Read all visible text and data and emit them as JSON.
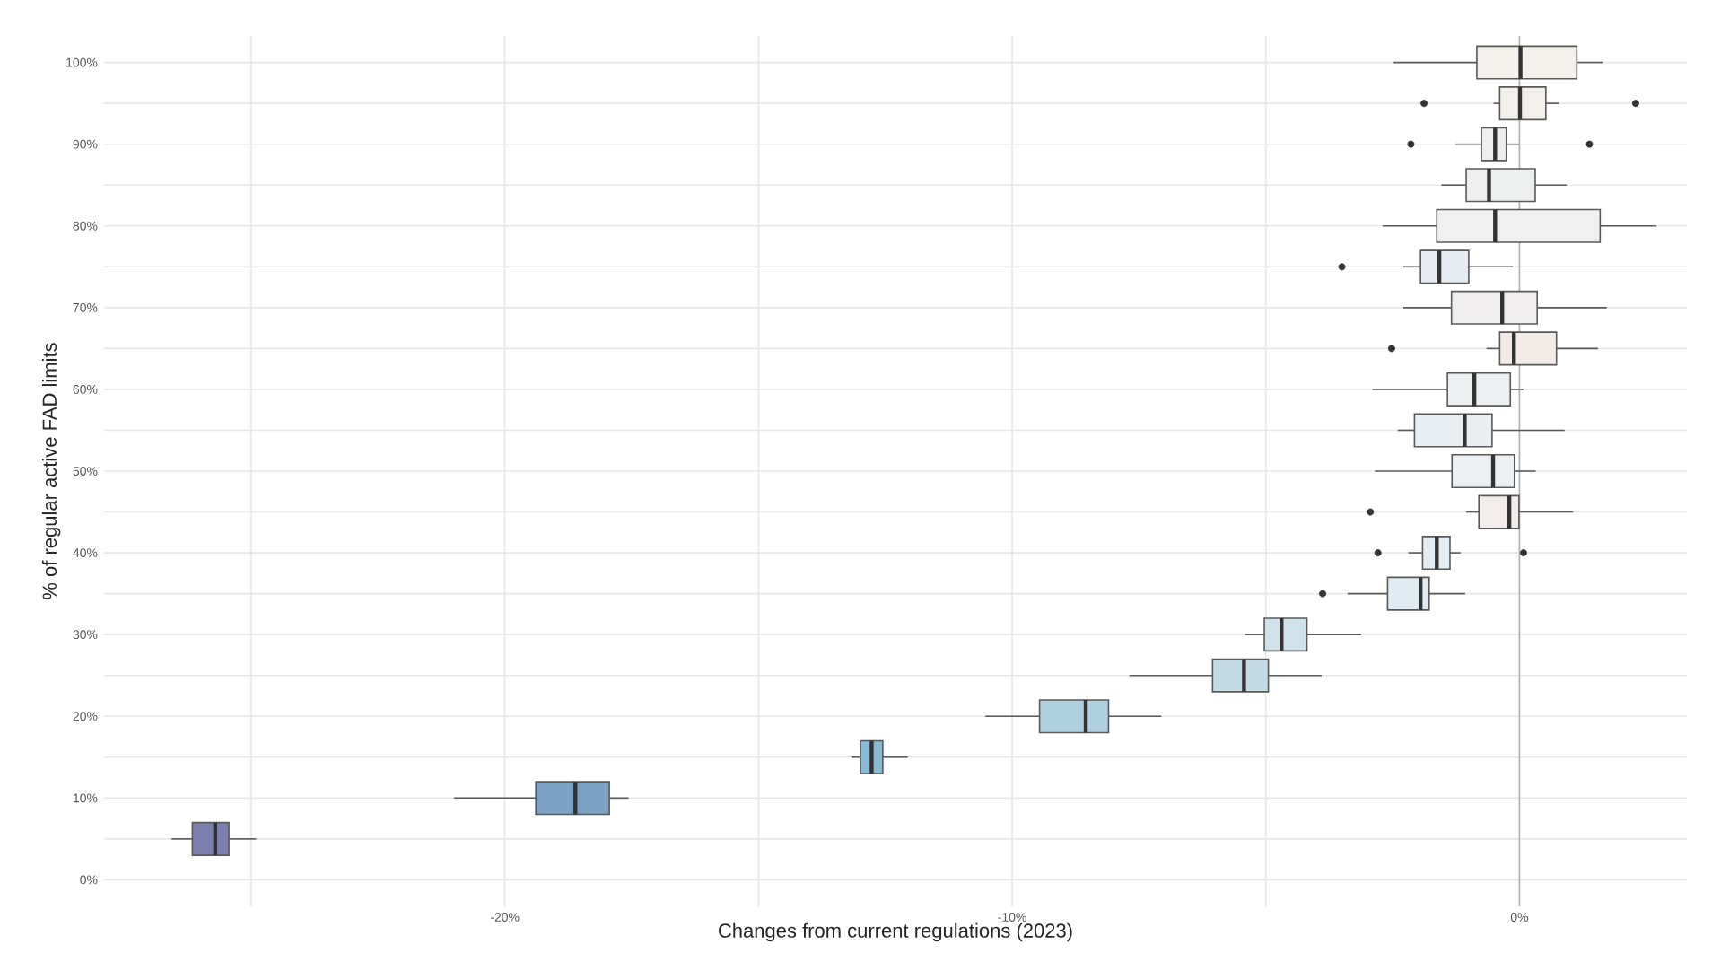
{
  "chart_data": {
    "type": "box",
    "orientation": "horizontal",
    "xlabel": "Changes from current regulations (2023)",
    "ylabel": "% of regular active FAD limits",
    "categories": [
      "100%",
      null,
      "90%",
      null,
      "80%",
      null,
      "70%",
      null,
      "60%",
      null,
      "50%",
      null,
      "40%",
      null,
      "30%",
      null,
      "20%",
      null,
      "10%",
      null,
      "0%"
    ],
    "boxes": [
      {
        "low": -2.48,
        "q1": -0.84,
        "median": 0.02,
        "q3": 1.13,
        "high": 1.64
      },
      {
        "low": -0.51,
        "q1": -0.39,
        "median": 0.01,
        "q3": 0.52,
        "high": 0.78,
        "outliers": [
          -1.88,
          2.29
        ]
      },
      {
        "low": -1.26,
        "q1": -0.75,
        "median": -0.48,
        "q3": -0.26,
        "high": -0.01,
        "outliers": [
          -2.14,
          1.38
        ]
      },
      {
        "low": -1.54,
        "q1": -1.05,
        "median": -0.6,
        "q3": 0.31,
        "high": 0.93
      },
      {
        "low": -2.7,
        "q1": -1.63,
        "median": -0.48,
        "q3": 1.59,
        "high": 2.7
      },
      {
        "low": -2.29,
        "q1": -1.95,
        "median": -1.58,
        "q3": -1.0,
        "high": -0.13,
        "outliers": [
          -3.5
        ]
      },
      {
        "low": -2.29,
        "q1": -1.34,
        "median": -0.34,
        "q3": 0.35,
        "high": 1.72
      },
      {
        "low": -0.65,
        "q1": -0.39,
        "median": -0.11,
        "q3": 0.73,
        "high": 1.55,
        "outliers": [
          -2.52
        ]
      },
      {
        "low": -2.9,
        "q1": -1.42,
        "median": -0.89,
        "q3": -0.18,
        "high": 0.08
      },
      {
        "low": -2.4,
        "q1": -2.07,
        "median": -1.08,
        "q3": -0.54,
        "high": 0.89
      },
      {
        "low": -2.85,
        "q1": -1.33,
        "median": -0.52,
        "q3": -0.1,
        "high": 0.32
      },
      {
        "low": -1.05,
        "q1": -0.8,
        "median": -0.2,
        "q3": -0.01,
        "high": 1.06,
        "outliers": [
          -2.94
        ]
      },
      {
        "low": -2.19,
        "q1": -1.91,
        "median": -1.63,
        "q3": -1.37,
        "high": -1.16,
        "outliers": [
          -2.79,
          0.08
        ]
      },
      {
        "low": -3.39,
        "q1": -2.6,
        "median": -1.95,
        "q3": -1.78,
        "high": -1.07,
        "outliers": [
          -3.88
        ]
      },
      {
        "low": -5.41,
        "q1": -5.03,
        "median": -4.69,
        "q3": -4.19,
        "high": -3.12
      },
      {
        "low": -7.69,
        "q1": -6.05,
        "median": -5.43,
        "q3": -4.95,
        "high": -3.9
      },
      {
        "low": -10.53,
        "q1": -9.46,
        "median": -8.55,
        "q3": -8.1,
        "high": -7.06
      },
      {
        "low": -13.17,
        "q1": -12.99,
        "median": -12.77,
        "q3": -12.55,
        "high": -12.06
      },
      {
        "low": -21.0,
        "q1": -19.39,
        "median": -18.61,
        "q3": -17.94,
        "high": -17.56
      },
      {
        "low": -26.57,
        "q1": -26.16,
        "median": -25.71,
        "q3": -25.44,
        "high": -24.9
      },
      null
    ],
    "colors": [
      "#f3efea",
      "#f3efea",
      "#eeeeee",
      "#eef0f0",
      "#f0f0f0",
      "#e6ecf1",
      "#f0eeee",
      "#f2ebe8",
      "#edf0f1",
      "#e8eef1",
      "#edf0f2",
      "#f2ecea",
      "#e3eef4",
      "#e1ecf2",
      "#cfe2ec",
      "#c3dbe7",
      "#b0cfe0",
      "#8ab9d3",
      "#7ca3c4",
      "#7c80b0",
      null
    ],
    "xlim": [
      -27.9,
      3.3
    ],
    "xticks": [
      {
        "value": -25,
        "label": null
      },
      {
        "value": -20,
        "label": "-20%"
      },
      {
        "value": -15,
        "label": null
      },
      {
        "value": -10,
        "label": "-10%"
      },
      {
        "value": -5,
        "label": null
      },
      {
        "value": 0,
        "label": "0%"
      }
    ],
    "ref_lines": [
      {
        "axis": "x",
        "value": 0,
        "color": "#b0b0b0"
      }
    ],
    "grid": true
  }
}
